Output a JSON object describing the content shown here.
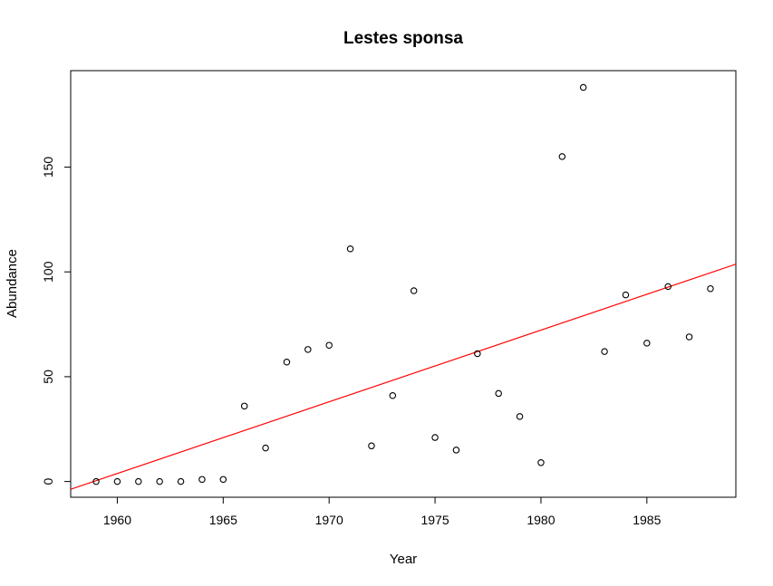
{
  "chart_data": {
    "type": "scatter",
    "title": "Lestes sponsa",
    "xlabel": "Year",
    "ylabel": "Abundance",
    "xlim": [
      1957.8,
      1989.2
    ],
    "ylim": [
      -7.5,
      196
    ],
    "xticks": [
      1960,
      1965,
      1970,
      1975,
      1980,
      1985
    ],
    "yticks": [
      0,
      50,
      100,
      150
    ],
    "grid": false,
    "legend": "none",
    "points": {
      "x": [
        1959,
        1960,
        1961,
        1962,
        1963,
        1964,
        1965,
        1966,
        1967,
        1968,
        1969,
        1970,
        1971,
        1972,
        1973,
        1974,
        1975,
        1976,
        1977,
        1978,
        1979,
        1980,
        1981,
        1982,
        1983,
        1984,
        1985,
        1986,
        1987,
        1988
      ],
      "y": [
        0,
        0,
        0,
        0,
        0,
        1,
        1,
        36,
        16,
        57,
        63,
        65,
        111,
        17,
        41,
        91,
        21,
        15,
        61,
        42,
        31,
        9,
        155,
        188,
        62,
        89,
        66,
        93,
        69,
        92
      ]
    },
    "trend_line": {
      "color": "#ff0000",
      "intercept_at_1957_8": -3.7,
      "slope": 3.42
    },
    "point_color": "#000000"
  }
}
